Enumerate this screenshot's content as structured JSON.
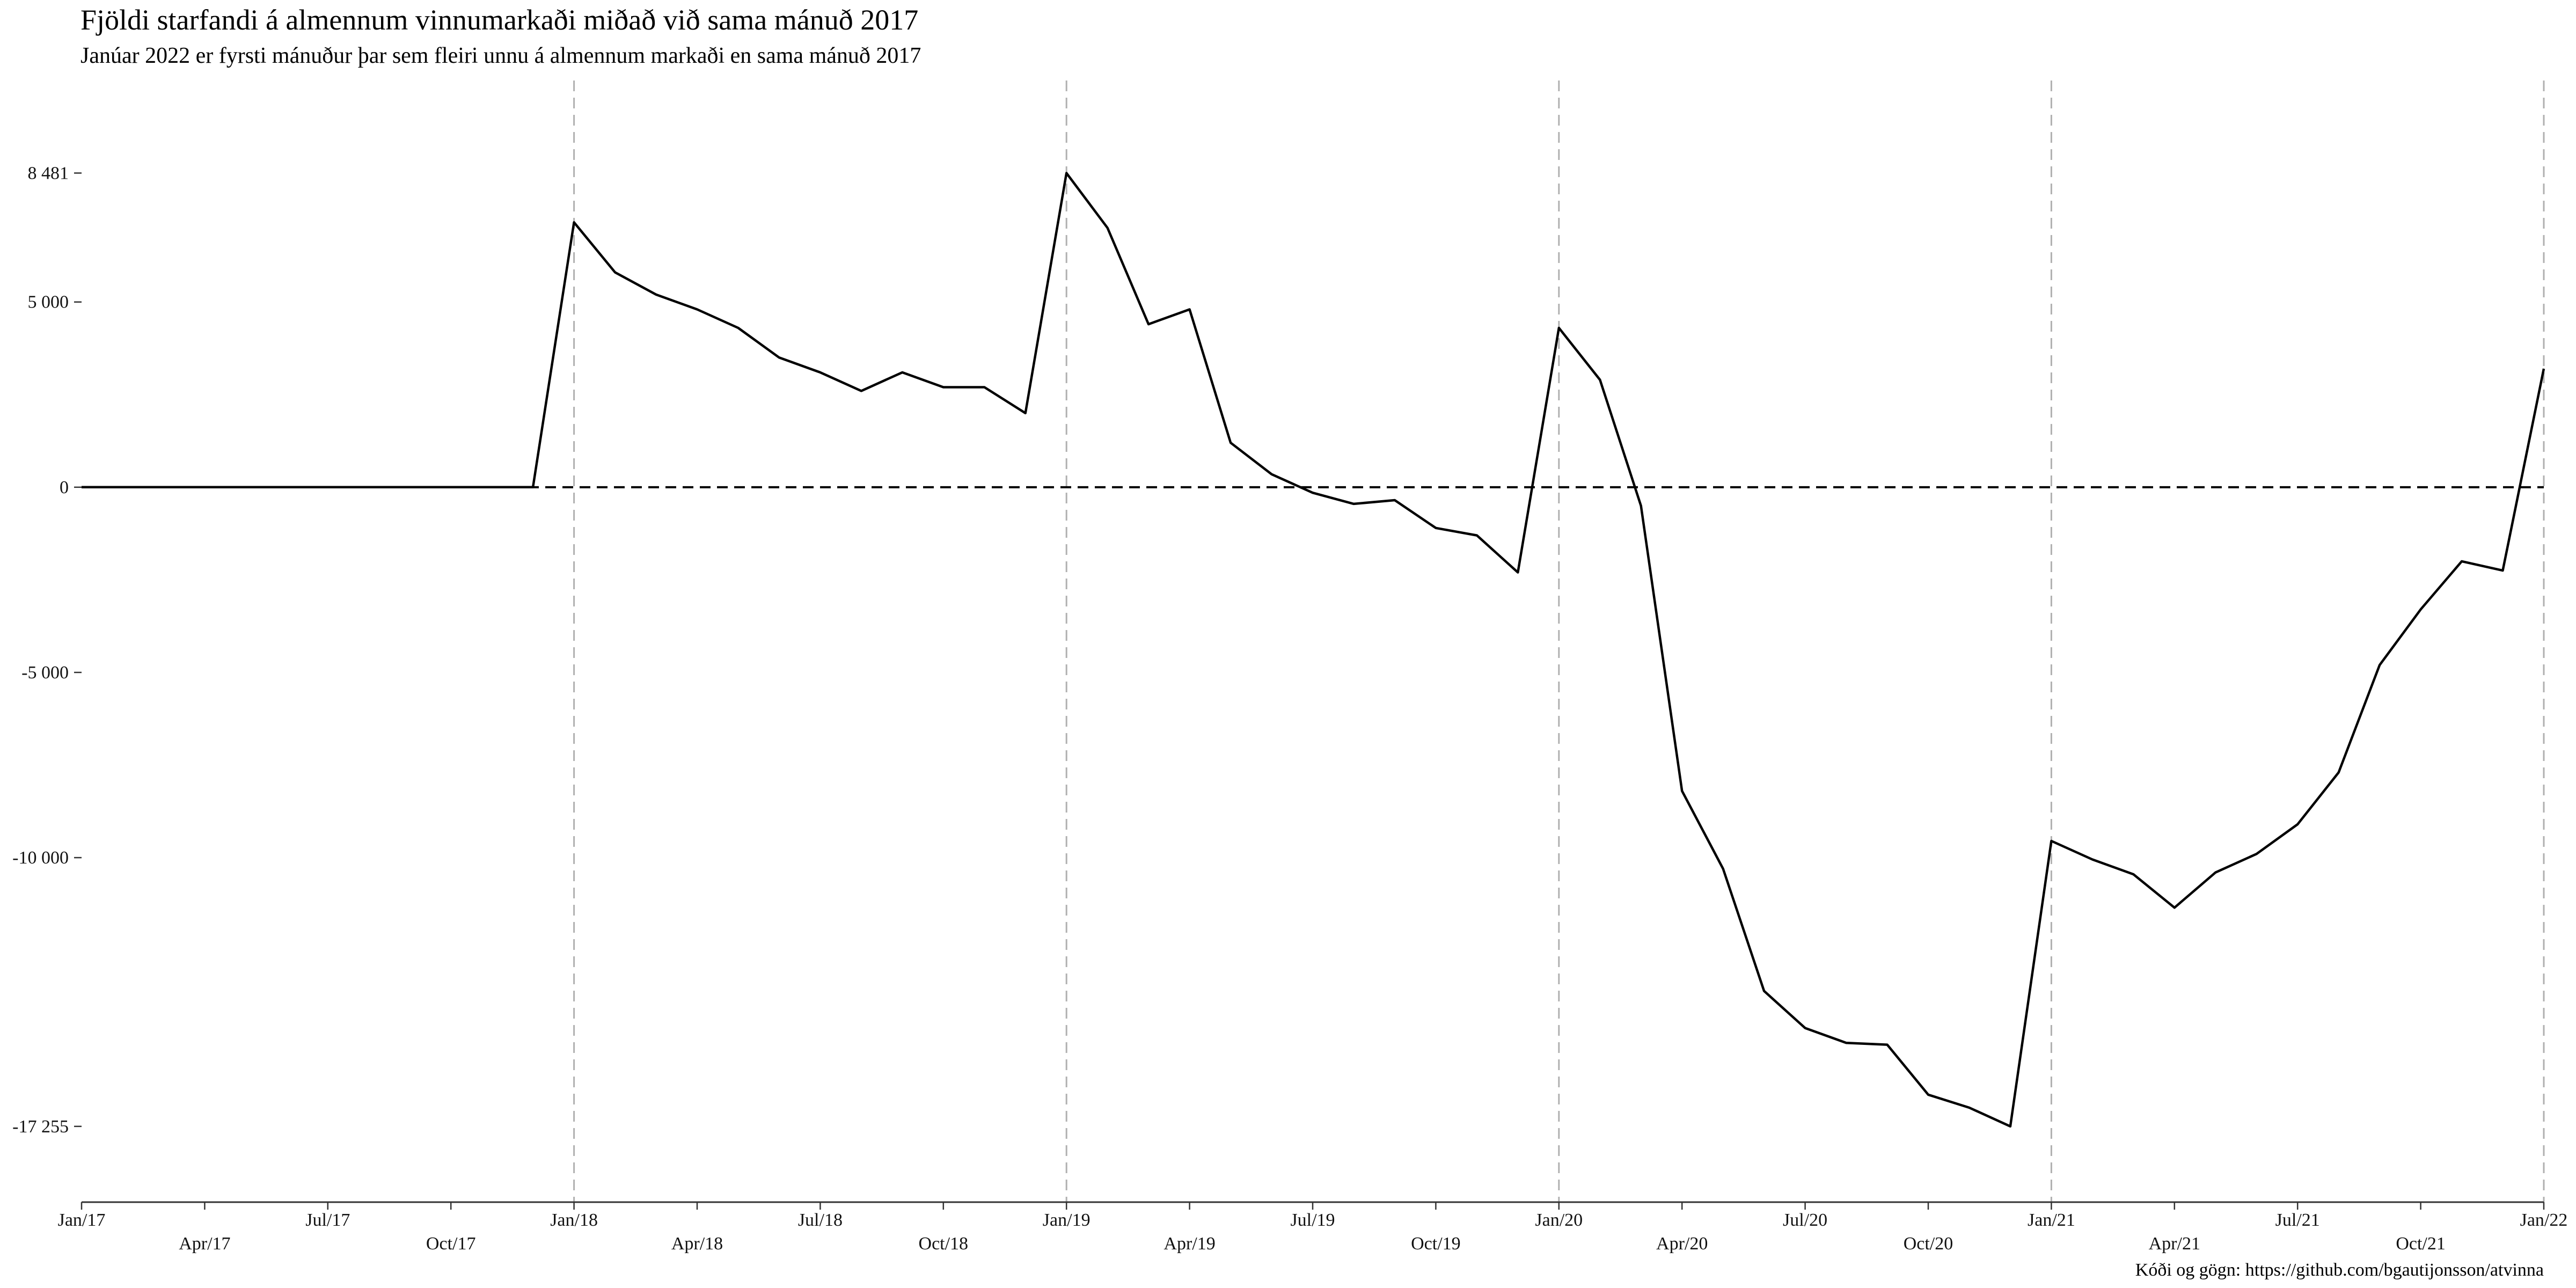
{
  "header": {
    "title": "Fjöldi starfandi á almennum vinnumarkaði miðað við sama mánuð 2017",
    "subtitle": "Janúar 2022 er fyrsti mánuður þar sem fleiri unnu á almennum markaði en sama mánuð 2017"
  },
  "caption": "Kóði og gögn: https://github.com/bgautijonsson/atvinna",
  "chart_data": {
    "type": "line",
    "title": "Fjöldi starfandi á almennum vinnumarkaði miðað við sama mánuð 2017",
    "subtitle": "Janúar 2022 er fyrsti mánuður þar sem fleiri unnu á almennum markaði en sama mánuð 2017",
    "xlabel": "",
    "ylabel": "",
    "x_range": [
      "2017-01",
      "2022-01"
    ],
    "ylim": [
      -19300,
      10400
    ],
    "y_ticks": [
      {
        "value": 8481,
        "label": "8 481"
      },
      {
        "value": 5000,
        "label": "5 000"
      },
      {
        "value": 0,
        "label": "0"
      },
      {
        "value": -5000,
        "label": "-5 000"
      },
      {
        "value": -10000,
        "label": "-10 000"
      },
      {
        "value": -17255,
        "label": "-17 255"
      }
    ],
    "x_ticks": [
      {
        "value": "2017-01",
        "label": "Jan/17"
      },
      {
        "value": "2017-04",
        "label": "Apr/17"
      },
      {
        "value": "2017-07",
        "label": "Jul/17"
      },
      {
        "value": "2017-10",
        "label": "Oct/17"
      },
      {
        "value": "2018-01",
        "label": "Jan/18"
      },
      {
        "value": "2018-04",
        "label": "Apr/18"
      },
      {
        "value": "2018-07",
        "label": "Jul/18"
      },
      {
        "value": "2018-10",
        "label": "Oct/18"
      },
      {
        "value": "2019-01",
        "label": "Jan/19"
      },
      {
        "value": "2019-04",
        "label": "Apr/19"
      },
      {
        "value": "2019-07",
        "label": "Jul/19"
      },
      {
        "value": "2019-10",
        "label": "Oct/19"
      },
      {
        "value": "2020-01",
        "label": "Jan/20"
      },
      {
        "value": "2020-04",
        "label": "Apr/20"
      },
      {
        "value": "2020-07",
        "label": "Jul/20"
      },
      {
        "value": "2020-10",
        "label": "Oct/20"
      },
      {
        "value": "2021-01",
        "label": "Jan/21"
      },
      {
        "value": "2021-04",
        "label": "Apr/21"
      },
      {
        "value": "2021-07",
        "label": "Jul/21"
      },
      {
        "value": "2021-10",
        "label": "Oct/21"
      },
      {
        "value": "2022-01",
        "label": "Jan/22"
      }
    ],
    "vertical_reference_lines": [
      "2018-01",
      "2019-01",
      "2020-01",
      "2021-01",
      "2022-01"
    ],
    "horizontal_reference_line": 0,
    "grid": false,
    "legend": "none",
    "line_color": "#000000",
    "reference_line_color": "#b0b0b0",
    "series": [
      {
        "x": [
          "2017-01",
          "2017-02",
          "2017-03",
          "2017-04",
          "2017-05",
          "2017-06",
          "2017-07",
          "2017-08",
          "2017-09",
          "2017-10",
          "2017-11",
          "2017-12",
          "2018-01",
          "2018-02",
          "2018-03",
          "2018-04",
          "2018-05",
          "2018-06",
          "2018-07",
          "2018-08",
          "2018-09",
          "2018-10",
          "2018-11",
          "2018-12",
          "2019-01",
          "2019-02",
          "2019-03",
          "2019-04",
          "2019-05",
          "2019-06",
          "2019-07",
          "2019-08",
          "2019-09",
          "2019-10",
          "2019-11",
          "2019-12",
          "2020-01",
          "2020-02",
          "2020-03",
          "2020-04",
          "2020-05",
          "2020-06",
          "2020-07",
          "2020-08",
          "2020-09",
          "2020-10",
          "2020-11",
          "2020-12",
          "2021-01",
          "2021-02",
          "2021-03",
          "2021-04",
          "2021-05",
          "2021-06",
          "2021-07",
          "2021-08",
          "2021-09",
          "2021-10",
          "2021-11",
          "2021-12",
          "2022-01"
        ],
        "values": [
          0,
          0,
          0,
          0,
          0,
          0,
          0,
          0,
          0,
          0,
          0,
          0,
          7150,
          5800,
          5200,
          4800,
          4300,
          3500,
          3100,
          2600,
          3100,
          2700,
          2700,
          2000,
          8481,
          7000,
          4400,
          4800,
          1200,
          350,
          -150,
          -450,
          -350,
          -1100,
          -1300,
          -2300,
          4300,
          2900,
          -500,
          -8200,
          -10300,
          -13600,
          -14600,
          -15000,
          -15050,
          -16400,
          -16750,
          -17255,
          -9550,
          -10050,
          -10450,
          -11350,
          -10400,
          -9900,
          -9100,
          -7700,
          -4800,
          -3300,
          -2000,
          -2250,
          3200
        ]
      }
    ]
  }
}
